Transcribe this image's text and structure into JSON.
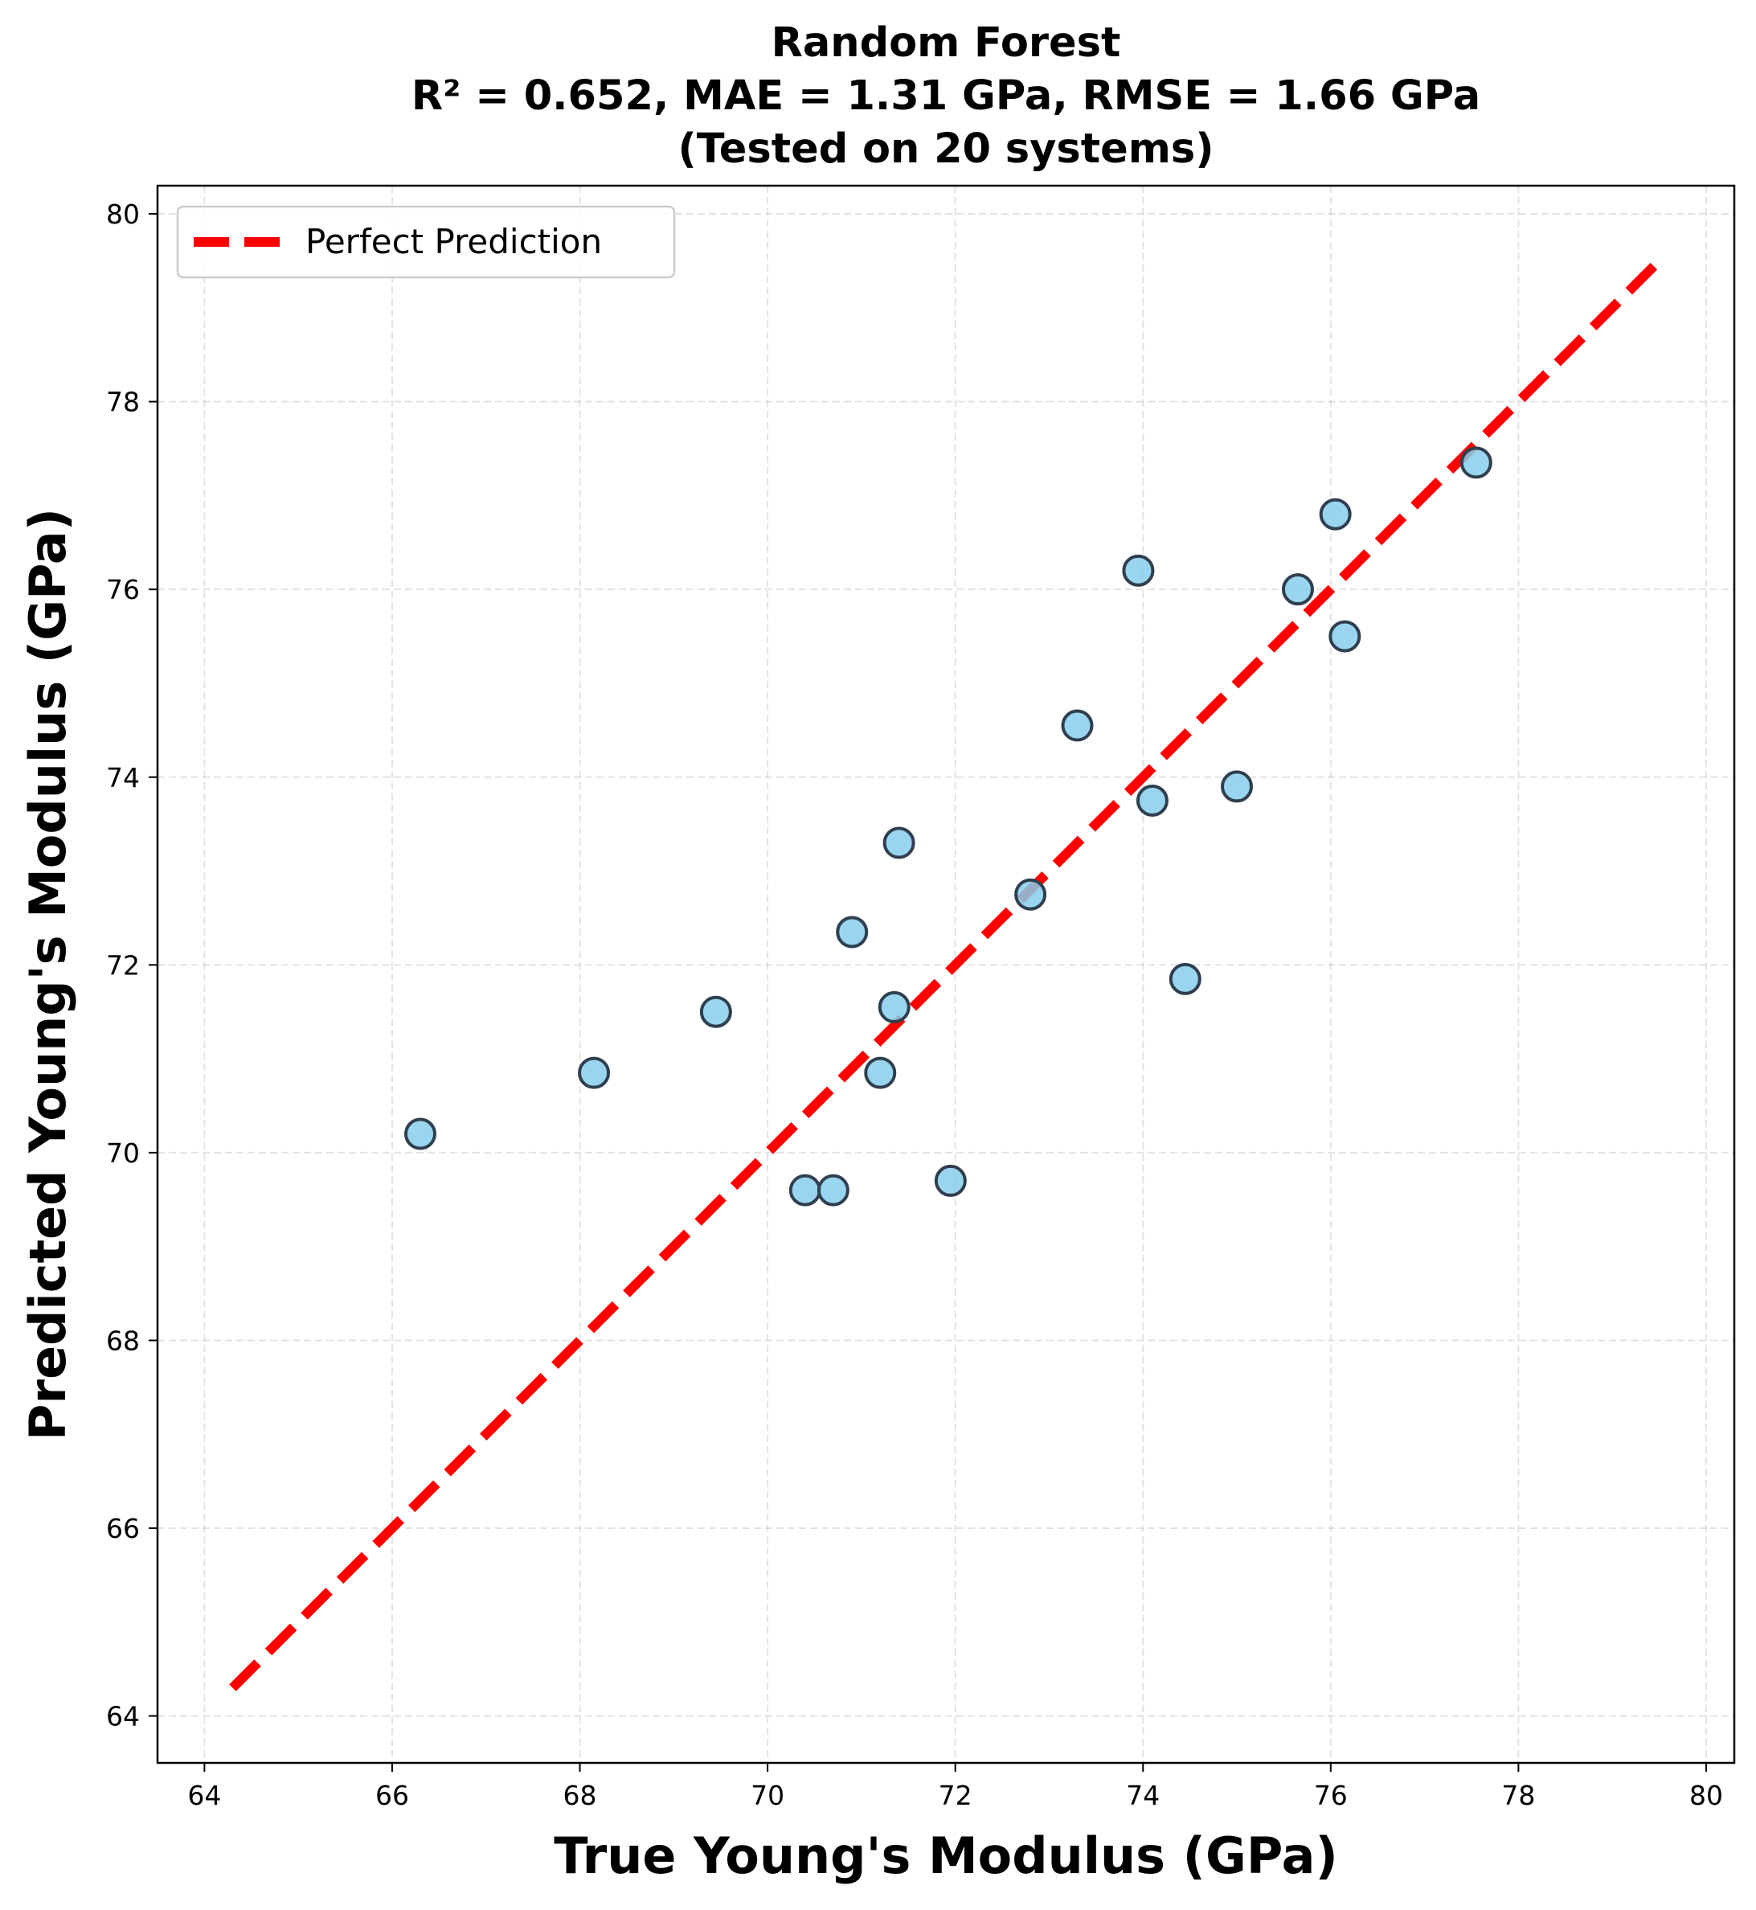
{
  "chart_data": {
    "type": "scatter",
    "title": "Random Forest",
    "subtitle_lines": [
      "R² = 0.652, MAE = 1.31 GPa, RMSE = 1.66 GPa",
      "(Tested on 20 systems)"
    ],
    "xlabel": "True Young's Modulus (GPa)",
    "ylabel": "Predicted Young's Modulus (GPa)",
    "xlim": [
      63.5,
      80.3
    ],
    "ylim": [
      63.5,
      80.3
    ],
    "xticks": [
      64,
      66,
      68,
      70,
      72,
      74,
      76,
      78,
      80
    ],
    "yticks": [
      64,
      66,
      68,
      70,
      72,
      74,
      76,
      78,
      80
    ],
    "grid": true,
    "legend_position": "upper-left",
    "reference_line": {
      "name": "Perfect Prediction",
      "from": [
        64.3,
        64.3
      ],
      "to": [
        79.5,
        79.5
      ],
      "color": "#ff0000",
      "style": "dashed"
    },
    "points": [
      {
        "x": 66.3,
        "y": 70.2
      },
      {
        "x": 68.15,
        "y": 70.85
      },
      {
        "x": 69.45,
        "y": 71.5
      },
      {
        "x": 70.4,
        "y": 69.6
      },
      {
        "x": 70.7,
        "y": 69.6
      },
      {
        "x": 70.9,
        "y": 72.35
      },
      {
        "x": 71.2,
        "y": 70.85
      },
      {
        "x": 71.35,
        "y": 71.55
      },
      {
        "x": 71.4,
        "y": 73.3
      },
      {
        "x": 71.95,
        "y": 69.7
      },
      {
        "x": 72.8,
        "y": 72.75
      },
      {
        "x": 73.3,
        "y": 74.55
      },
      {
        "x": 73.95,
        "y": 76.2
      },
      {
        "x": 74.1,
        "y": 73.75
      },
      {
        "x": 74.45,
        "y": 71.85
      },
      {
        "x": 75.0,
        "y": 73.9
      },
      {
        "x": 75.65,
        "y": 76.0
      },
      {
        "x": 76.05,
        "y": 76.8
      },
      {
        "x": 76.15,
        "y": 75.5
      },
      {
        "x": 77.55,
        "y": 77.35
      }
    ],
    "point_color": "#87ceeb",
    "point_edge_color": "#2f3f4f"
  }
}
